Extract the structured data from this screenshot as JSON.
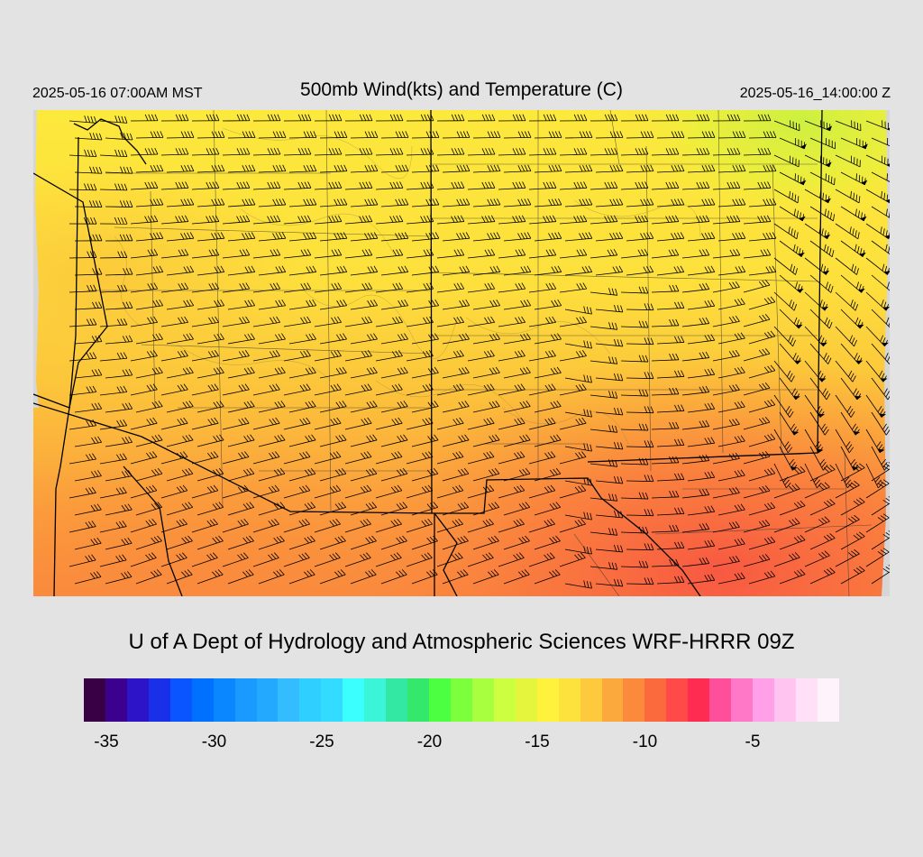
{
  "header": {
    "local_time": "2025-05-16 07:00AM MST",
    "title": "500mb Wind(kts) and Temperature (C)",
    "utc_time": "2025-05-16_14:00:00 Z"
  },
  "credit": "U of A Dept of Hydrology and Atmospheric Sciences WRF-HRRR 09Z",
  "map": {
    "field": "500mb temperature (C) with wind barbs (kts)",
    "temperature_colors": {
      "cold_north": "#fde73c",
      "mid": "#fcc93b",
      "warm": "#fb9e3c",
      "warmest_southeast": "#f9633f",
      "coldest_northeast": "#d4f03e"
    },
    "barb_color": "#000000",
    "boundary_color": "#000000"
  },
  "colorbar": {
    "colors": [
      "#3a0046",
      "#3c008f",
      "#2e14c8",
      "#1a2fe8",
      "#0a55ff",
      "#0070ff",
      "#0a86ff",
      "#1a9aff",
      "#23aaff",
      "#33bdff",
      "#2fcfff",
      "#33dcff",
      "#3bffff",
      "#3bf5d8",
      "#33e8a2",
      "#33e86a",
      "#4cff40",
      "#7cff3c",
      "#a8ff40",
      "#ccff40",
      "#e5f43c",
      "#fff23c",
      "#fde13c",
      "#fcca3c",
      "#fba83c",
      "#fb8a3c",
      "#fa6a3c",
      "#ff4a48",
      "#ff2c52",
      "#ff4f9a",
      "#ff78c8",
      "#ffa0e8",
      "#ffc4f0",
      "#ffe0f7",
      "#fff3fb"
    ],
    "ticks": [
      "-35",
      "-30",
      "-25",
      "-20",
      "-15",
      "-10",
      "-5"
    ]
  }
}
